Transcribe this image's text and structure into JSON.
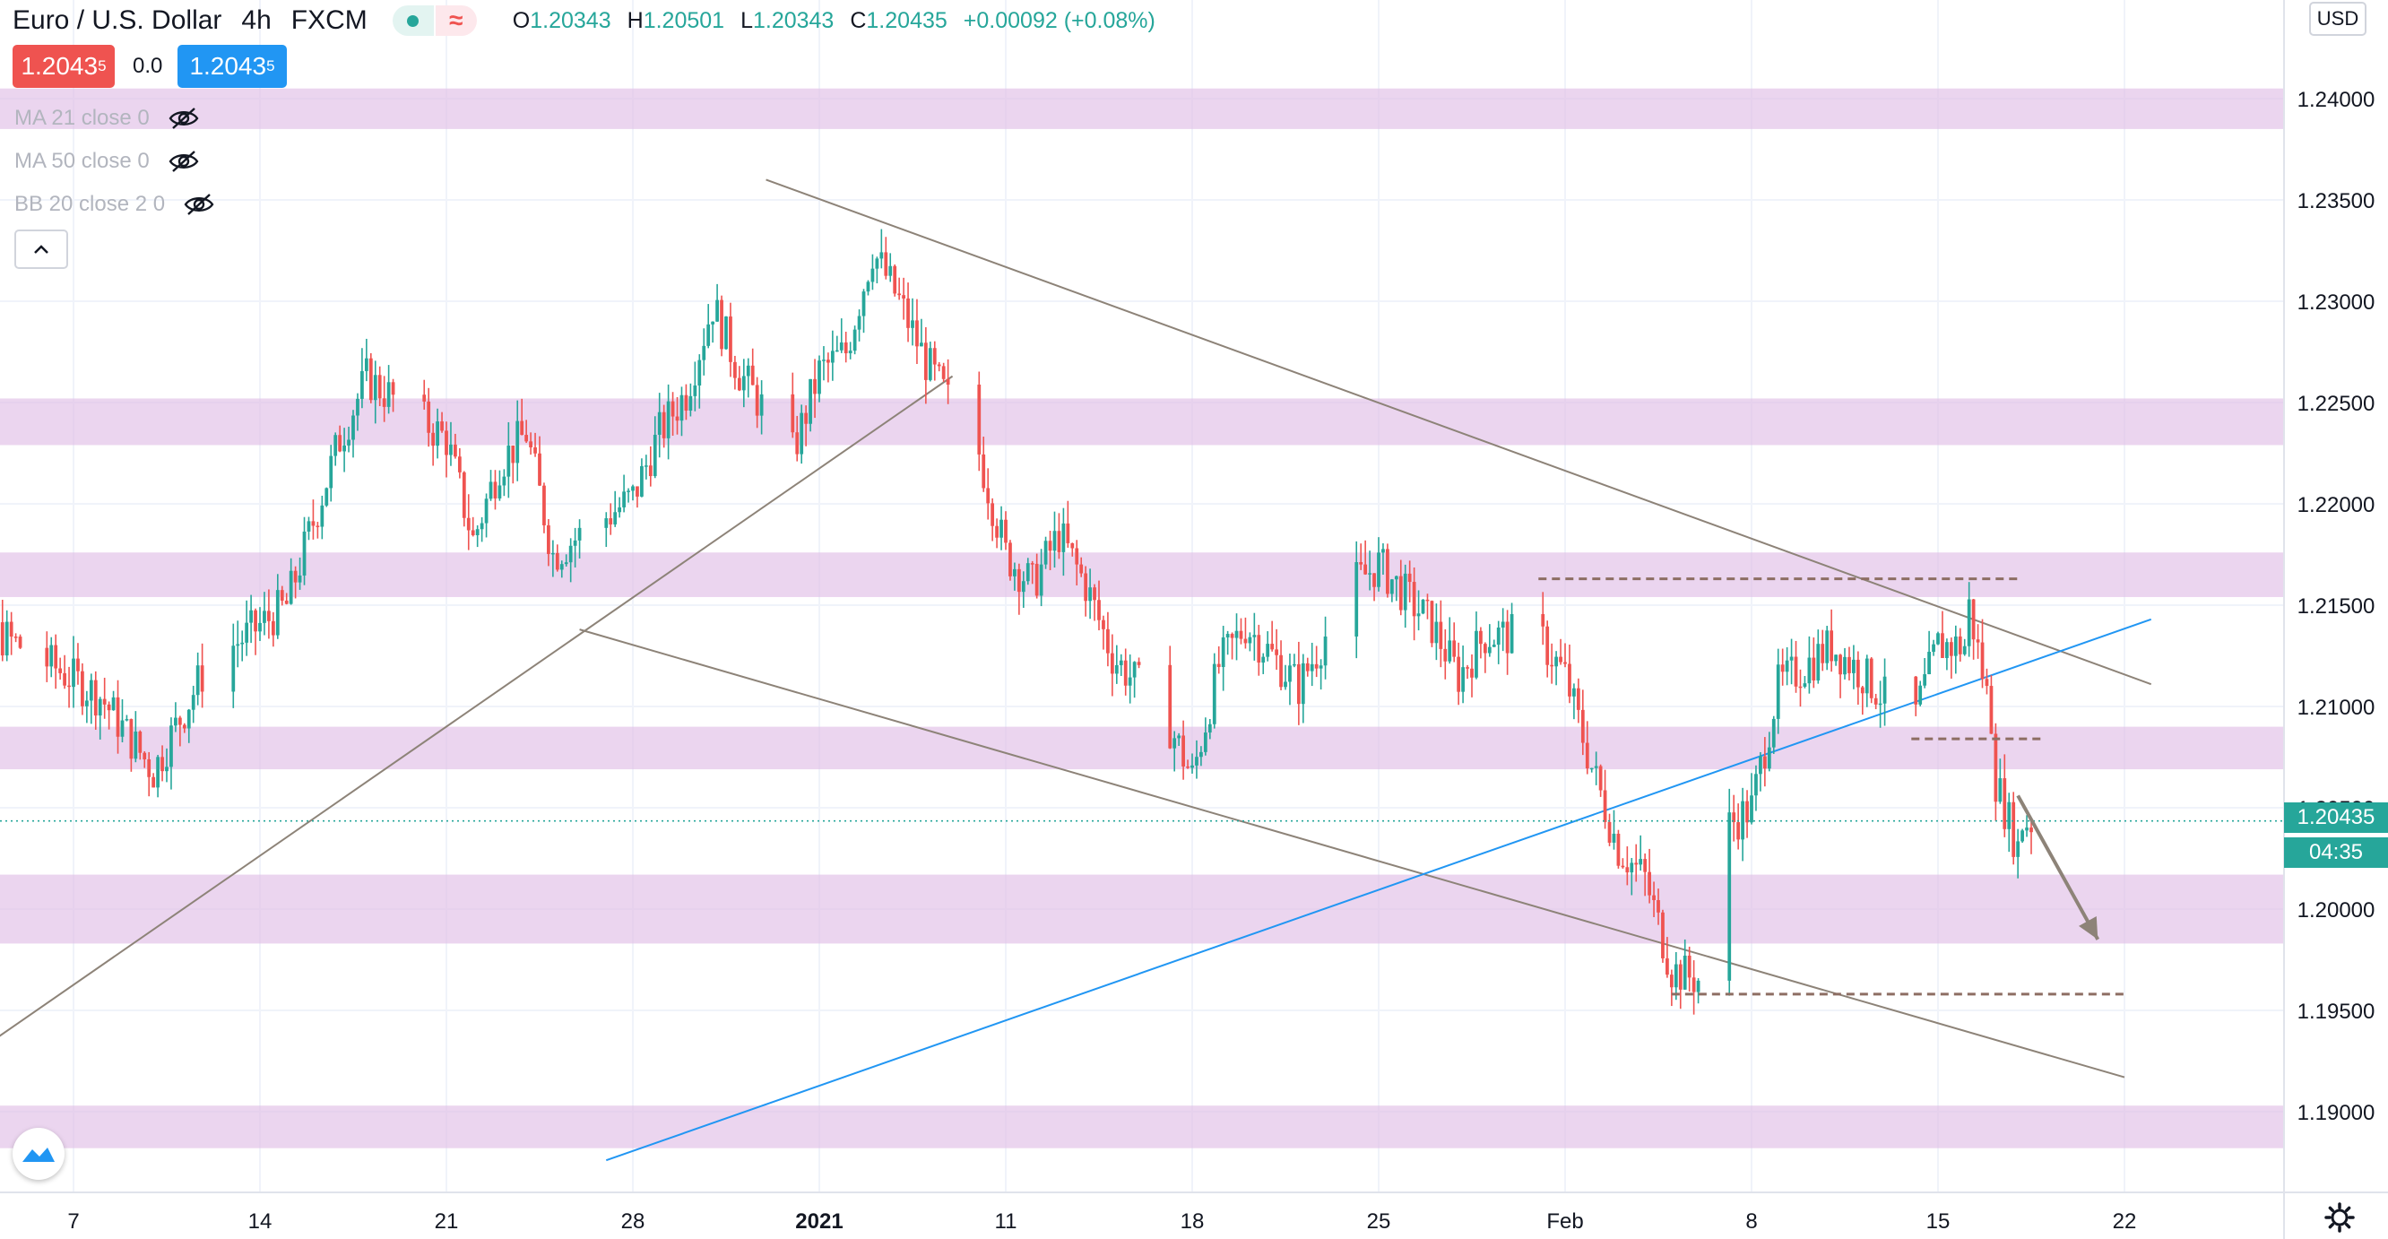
{
  "header": {
    "symbol": "Euro / U.S. Dollar",
    "interval": "4h",
    "exchange": "FXCM",
    "ohlc": {
      "o_label": "O",
      "o": "1.20343",
      "h_label": "H",
      "h": "1.20501",
      "l_label": "L",
      "l": "1.20343",
      "c_label": "C",
      "c": "1.20435",
      "change": "+0.00092 (+0.08%)"
    },
    "sell_price": "1.2043",
    "sell_price_sup": "5",
    "spread": "0.0",
    "buy_price": "1.2043",
    "buy_price_sup": "5"
  },
  "indicators": [
    {
      "label": "MA 21 close 0",
      "icon": "eye-hidden-icon"
    },
    {
      "label": "MA 50 close 0",
      "icon": "eye-hidden-icon"
    },
    {
      "label": "BB 20 close 2 0",
      "icon": "eye-hidden-icon"
    }
  ],
  "price_axis": {
    "currency": "USD",
    "last_price_label": "1.20435",
    "countdown": "04:35"
  },
  "colors": {
    "up": "#26a69a",
    "down": "#ef5350",
    "zone": "#e1bee7",
    "trend_blue": "#2196f3",
    "trend_gray": "#8d8378",
    "level_dash": "#8d6e63",
    "buy_blue": "#2196f3",
    "sell_red": "#ef5350"
  },
  "chart_data": {
    "type": "candlestick",
    "symbol": "EURUSD",
    "timeframe": "4h",
    "y_ticks": [
      "1.24000",
      "1.23500",
      "1.23000",
      "1.22500",
      "1.22000",
      "1.21500",
      "1.21000",
      "1.20500",
      "1.20000",
      "1.19500",
      "1.19000"
    ],
    "ylim": [
      1.1875,
      1.2425
    ],
    "x_ticks": [
      "7",
      "14",
      "21",
      "28",
      "2021",
      "11",
      "18",
      "25",
      "Feb",
      "8",
      "15",
      "22"
    ],
    "last_price": 1.20435,
    "zones": [
      [
        1.2385,
        1.2405
      ],
      [
        1.2229,
        1.2252
      ],
      [
        1.2154,
        1.2176
      ],
      [
        1.2069,
        1.209
      ],
      [
        1.1983,
        1.2017
      ],
      [
        1.1882,
        1.1903
      ]
    ],
    "levels": [
      1.2163,
      1.2084,
      1.1958
    ],
    "trendlines": [
      {
        "from": [
          "Dec 1",
          1.1908
        ],
        "to": [
          "Jan 9",
          1.2263
        ],
        "color": "gray"
      },
      {
        "from": [
          "Jan 2",
          1.236
        ],
        "to": [
          "Feb 23",
          1.2111
        ],
        "color": "gray"
      },
      {
        "from": [
          "Dec 26",
          1.2138
        ],
        "to": [
          "Feb 22",
          1.1917
        ],
        "color": "gray"
      },
      {
        "from": [
          "Dec 27",
          1.1876
        ],
        "to": [
          "Feb 23",
          1.2143
        ],
        "color": "blue"
      }
    ],
    "projection_arrow": {
      "from": [
        "Feb 18",
        1.2056
      ],
      "to": [
        "Feb 21",
        1.1985
      ]
    },
    "anchors": [
      {
        "date": "Dec 2",
        "price": 1.215
      },
      {
        "date": "Dec 5",
        "price": 1.213
      },
      {
        "date": "Dec 8",
        "price": 1.2105
      },
      {
        "date": "Dec 10",
        "price": 1.2068
      },
      {
        "date": "Dec 12",
        "price": 1.212
      },
      {
        "date": "Dec 15",
        "price": 1.215
      },
      {
        "date": "Dec 17",
        "price": 1.2232
      },
      {
        "date": "Dec 18",
        "price": 1.2262
      },
      {
        "date": "Dec 21",
        "price": 1.2232
      },
      {
        "date": "Dec 22",
        "price": 1.2182
      },
      {
        "date": "Dec 23",
        "price": 1.222
      },
      {
        "date": "Dec 24",
        "price": 1.2235
      },
      {
        "date": "Dec 25",
        "price": 1.2175
      },
      {
        "date": "Dec 28",
        "price": 1.2203
      },
      {
        "date": "Dec 29",
        "price": 1.2235
      },
      {
        "date": "Dec 30",
        "price": 1.2255
      },
      {
        "date": "Dec 31",
        "price": 1.2298
      },
      {
        "date": "Jan 1",
        "price": 1.2265
      },
      {
        "date": "Jan 3",
        "price": 1.2225
      },
      {
        "date": "Jan 4",
        "price": 1.2265
      },
      {
        "date": "Jan 5",
        "price": 1.2275
      },
      {
        "date": "Jan 6",
        "price": 1.2325
      },
      {
        "date": "Jan 7",
        "price": 1.23
      },
      {
        "date": "Jan 8",
        "price": 1.227
      },
      {
        "date": "Jan 10",
        "price": 1.2225
      },
      {
        "date": "Jan 11",
        "price": 1.2175
      },
      {
        "date": "Jan 12",
        "price": 1.216
      },
      {
        "date": "Jan 13",
        "price": 1.2185
      },
      {
        "date": "Jan 14",
        "price": 1.216
      },
      {
        "date": "Jan 15",
        "price": 1.2125
      },
      {
        "date": "Jan 17",
        "price": 1.2095
      },
      {
        "date": "Jan 18",
        "price": 1.2065
      },
      {
        "date": "Jan 19",
        "price": 1.212
      },
      {
        "date": "Jan 20",
        "price": 1.214
      },
      {
        "date": "Jan 21",
        "price": 1.2125
      },
      {
        "date": "Jan 22",
        "price": 1.211
      },
      {
        "date": "Jan 24",
        "price": 1.216
      },
      {
        "date": "Jan 25",
        "price": 1.217
      },
      {
        "date": "Jan 26",
        "price": 1.2155
      },
      {
        "date": "Jan 27",
        "price": 1.214
      },
      {
        "date": "Jan 28",
        "price": 1.2115
      },
      {
        "date": "Jan 29",
        "price": 1.2135
      },
      {
        "date": "Jan 31",
        "price": 1.2135
      },
      {
        "date": "Feb 1",
        "price": 1.2115
      },
      {
        "date": "Feb 2",
        "price": 1.207
      },
      {
        "date": "Feb 3",
        "price": 1.203
      },
      {
        "date": "Feb 4",
        "price": 1.2015
      },
      {
        "date": "Feb 5",
        "price": 1.197
      },
      {
        "date": "Feb 6",
        "price": 1.1965
      },
      {
        "date": "Feb 7",
        "price": 1.204
      },
      {
        "date": "Feb 8",
        "price": 1.205
      },
      {
        "date": "Feb 9",
        "price": 1.211
      },
      {
        "date": "Feb 10",
        "price": 1.212
      },
      {
        "date": "Feb 11",
        "price": 1.213
      },
      {
        "date": "Feb 12",
        "price": 1.2118
      },
      {
        "date": "Feb 14",
        "price": 1.209
      },
      {
        "date": "Feb 15",
        "price": 1.213
      },
      {
        "date": "Feb 16",
        "price": 1.213
      },
      {
        "date": "Feb 16",
        "price": 1.216
      },
      {
        "date": "Feb 17",
        "price": 1.2095
      },
      {
        "date": "Feb 17",
        "price": 1.207
      },
      {
        "date": "Feb 18",
        "price": 1.203
      },
      {
        "date": "Feb 18",
        "price": 1.2043
      }
    ]
  }
}
